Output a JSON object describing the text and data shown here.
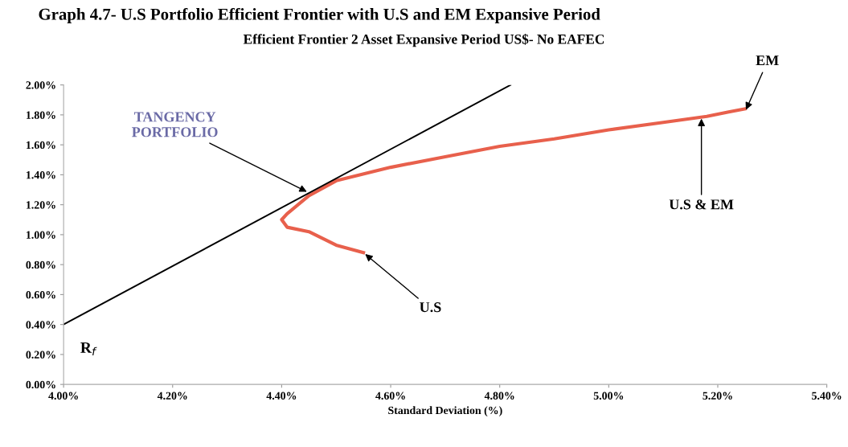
{
  "chart_data": {
    "type": "line",
    "title": "Graph 4.7- U.S Portfolio Efficient Frontier with U.S and EM Expansive Period",
    "subtitle": "Efficient Frontier 2 Asset Expansive Period US$- No EAFEC",
    "xlabel": "Standard Deviation (%)",
    "series": [
      {
        "color": "#e8604c",
        "x": [
          4.55,
          4.5,
          4.45,
          4.41,
          4.4,
          4.41,
          4.43,
          4.45,
          4.5,
          4.6,
          4.7,
          4.8,
          4.9,
          5.0,
          5.1,
          5.18,
          5.22,
          5.25
        ],
        "values": [
          0.88,
          0.93,
          1.02,
          1.05,
          1.1,
          1.14,
          1.2,
          1.26,
          1.36,
          1.45,
          1.52,
          1.59,
          1.64,
          1.7,
          1.75,
          1.79,
          1.82,
          1.84
        ]
      },
      {
        "color": "#000000",
        "x": [
          4.0,
          4.82
        ],
        "values": [
          0.4,
          2.0
        ]
      }
    ],
    "xlim": [
      4.0,
      5.4
    ],
    "xticks": [
      {
        "value": 4.0,
        "label": "4.00%"
      },
      {
        "value": 4.2,
        "label": "4.20%"
      },
      {
        "value": 4.4,
        "label": "4.40%"
      },
      {
        "value": 4.6,
        "label": "4.60%"
      },
      {
        "value": 4.8,
        "label": "4.80%"
      },
      {
        "value": 5.0,
        "label": "5.00%"
      },
      {
        "value": 5.2,
        "label": "5.20%"
      },
      {
        "value": 5.4,
        "label": "5.40%"
      }
    ],
    "ylim": [
      0.0,
      2.0
    ],
    "yticks": [
      {
        "value": 0.0,
        "label": "0.00%"
      },
      {
        "value": 0.2,
        "label": "0.20%"
      },
      {
        "value": 0.4,
        "label": "0.40%"
      },
      {
        "value": 0.6,
        "label": "0.60%"
      },
      {
        "value": 0.8,
        "label": "0.80%"
      },
      {
        "value": 1.0,
        "label": "1.00%"
      },
      {
        "value": 1.2,
        "label": "1.20%"
      },
      {
        "value": 1.4,
        "label": "1.40%"
      },
      {
        "value": 1.6,
        "label": "1.60%"
      },
      {
        "value": 1.8,
        "label": "1.80%"
      },
      {
        "value": 2.0,
        "label": "2.00%"
      }
    ],
    "annotations": [
      {
        "text": "TANGENCY\nPORTFOLIO",
        "x": 4.45,
        "y": 1.28
      },
      {
        "text": "EM",
        "x": 5.25,
        "y": 1.82
      },
      {
        "text": "U.S & EM",
        "x": 5.17,
        "y": 1.79
      },
      {
        "text": "U.S",
        "x": 4.55,
        "y": 0.88
      },
      {
        "text": "R$_{f}$",
        "x": 4.0,
        "y": 0.4
      }
    ],
    "grid": false,
    "marker": "none",
    "line_style": "solid"
  }
}
